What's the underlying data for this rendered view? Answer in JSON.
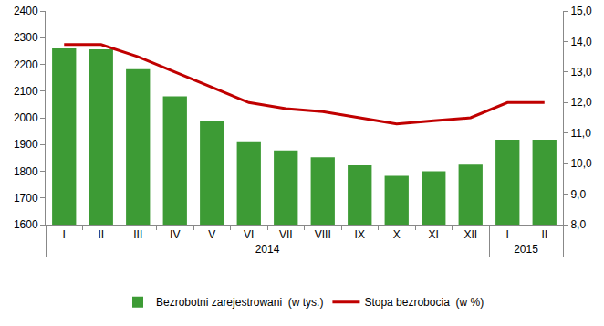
{
  "chart_data": {
    "type": "bar",
    "categories": [
      "I",
      "II",
      "III",
      "IV",
      "V",
      "VI",
      "VII",
      "VIII",
      "IX",
      "X",
      "XI",
      "XII",
      "I",
      "II"
    ],
    "years": [
      "2014",
      "2014",
      "2014",
      "2014",
      "2014",
      "2014",
      "2014",
      "2014",
      "2014",
      "2014",
      "2014",
      "2014",
      "2015",
      "2015"
    ],
    "series": [
      {
        "name": "Bezrobotni zarejestrowani  (w tys.)",
        "type": "bar",
        "color": "#3d9b35",
        "values": [
          2260,
          2256,
          2182,
          2080,
          1987,
          1912,
          1878,
          1852,
          1822,
          1783,
          1800,
          1825,
          1918,
          1918
        ]
      },
      {
        "name": "Stopa bezrobocia  (w %)",
        "type": "line",
        "color": "#c00000",
        "axis": "y2",
        "values": [
          13.9,
          13.9,
          13.5,
          13.0,
          12.5,
          12.0,
          11.8,
          11.7,
          11.5,
          11.3,
          11.4,
          11.5,
          12.0,
          12.0
        ]
      }
    ],
    "ylim": [
      1600,
      2400
    ],
    "yticks": [
      1600,
      1700,
      1800,
      1900,
      2000,
      2100,
      2200,
      2300,
      2400
    ],
    "y2lim": [
      8.0,
      15.0
    ],
    "y2ticks": [
      {
        "value": 8.0,
        "label": "8,0"
      },
      {
        "value": 9.0,
        "label": "9,0"
      },
      {
        "value": 10.0,
        "label": "10,0"
      },
      {
        "value": 11.0,
        "label": "11,0"
      },
      {
        "value": 12.0,
        "label": "12,0"
      },
      {
        "value": 13.0,
        "label": "13,0"
      },
      {
        "value": 14.0,
        "label": "14,0"
      },
      {
        "value": 15.0,
        "label": "15,0"
      }
    ],
    "grid": false,
    "legend": "bottom"
  }
}
